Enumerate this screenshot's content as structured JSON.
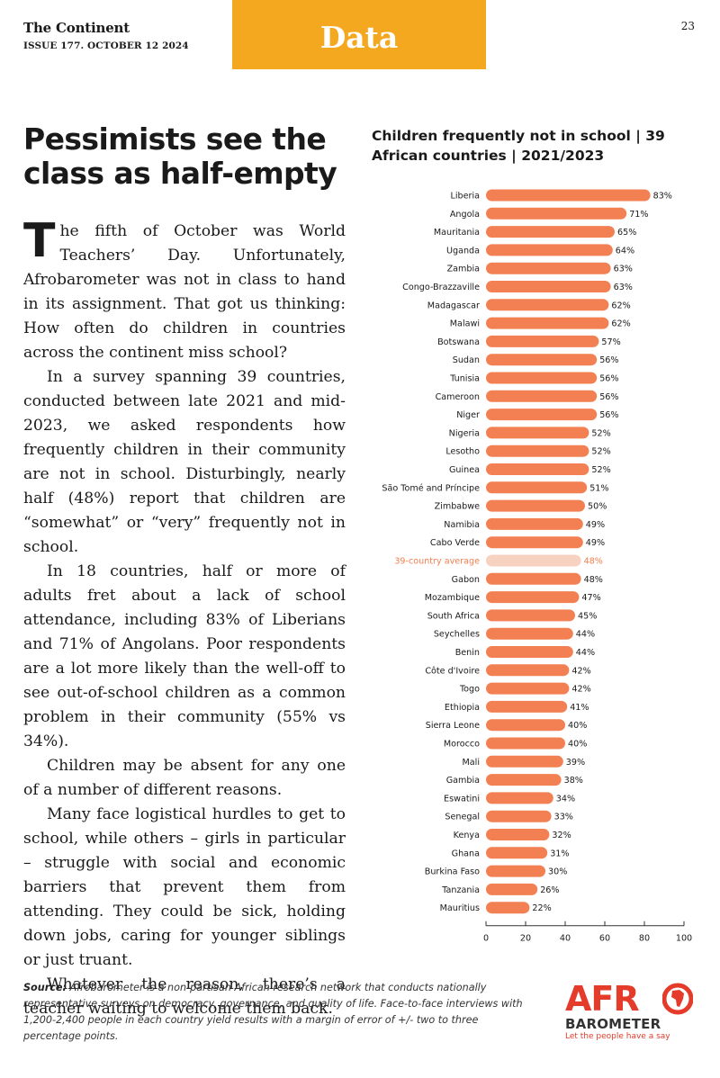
{
  "header": {
    "publication": "The Continent",
    "issue": "ISSUE 177. OCTOBER 12 2024",
    "section": "Data",
    "page_number": "23"
  },
  "headline": "Pessimists see the class as half-empty",
  "article": {
    "dropcap": "T",
    "first_paragraph_rest": "he fifth of October was World Teachers’ Day. Unfortunately, Afrobarometer was not in class to hand in its assignment. That got us thinking: How often do children in countries across the continent miss school?",
    "paragraphs": [
      "In a survey spanning 39 countries, conducted between late 2021 and mid-2023, we asked respondents how frequently children in their community are not in school. Disturbingly, nearly half (48%) report that children are “somewhat” or “very” frequently not in school.",
      "In 18 countries, half or more of adults fret about a lack of school attendance, including 83% of Liberians and 71% of Angolans. Poor respondents are a lot more likely than the well-off to see out-of-school children as a common problem in their community (55% vs 34%).",
      "Children may be absent for any one of a number of different reasons.",
      "Many face logistical hurdles to get to school, while others – girls in particular – struggle with social and economic barriers that prevent them from attending. They could be sick, holding down jobs, caring for younger siblings or just truant.",
      "Whatever the reason, there’s a teacher waiting to welcome them back."
    ]
  },
  "chart_data": {
    "type": "bar",
    "orientation": "horizontal",
    "title": "Children frequently not in school | 39 African countries | 2021/2023",
    "categories": [
      "Liberia",
      "Angola",
      "Mauritania",
      "Uganda",
      "Zambia",
      "Congo-Brazzaville",
      "Madagascar",
      "Malawi",
      "Botswana",
      "Sudan",
      "Tunisia",
      "Cameroon",
      "Niger",
      "Nigeria",
      "Lesotho",
      "Guinea",
      "São Tomé and Príncipe",
      "Zimbabwe",
      "Namibia",
      "Cabo Verde",
      "39-country average",
      "Gabon",
      "Mozambique",
      "South Africa",
      "Seychelles",
      "Benin",
      "Côte d'Ivoire",
      "Togo",
      "Ethiopia",
      "Sierra Leone",
      "Morocco",
      "Mali",
      "Gambia",
      "Eswatini",
      "Senegal",
      "Kenya",
      "Ghana",
      "Burkina Faso",
      "Tanzania",
      "Mauritius"
    ],
    "values": [
      83,
      71,
      65,
      64,
      63,
      63,
      62,
      62,
      57,
      56,
      56,
      56,
      56,
      52,
      52,
      52,
      51,
      50,
      49,
      49,
      48,
      48,
      47,
      45,
      44,
      44,
      42,
      42,
      41,
      40,
      40,
      39,
      38,
      34,
      33,
      32,
      31,
      30,
      26,
      22
    ],
    "highlight_category": "39-country average",
    "value_suffix": "%",
    "xlim": [
      0,
      100
    ],
    "xticks": [
      0,
      20,
      40,
      60,
      80,
      100
    ],
    "grid": false,
    "colors": {
      "bar": "#f28052",
      "highlight_bar": "#f8d2c0",
      "highlight_label": "#f28052",
      "text": "#1a1a1a"
    }
  },
  "footer": {
    "source_label": "Source:",
    "source_text": "Afrobarometer is a non-partisan African research network that conducts nationally representative surveys on democracy, governance, and quality of life. Face-to-face interviews with 1,200-2,400 people in each country yield results with a margin of error of +/- two to three percentage points."
  },
  "logo": {
    "top": "AFR",
    "bottom": "BAROMETER",
    "tagline": "Let the people have a say",
    "icon": "africa-map-icon"
  }
}
